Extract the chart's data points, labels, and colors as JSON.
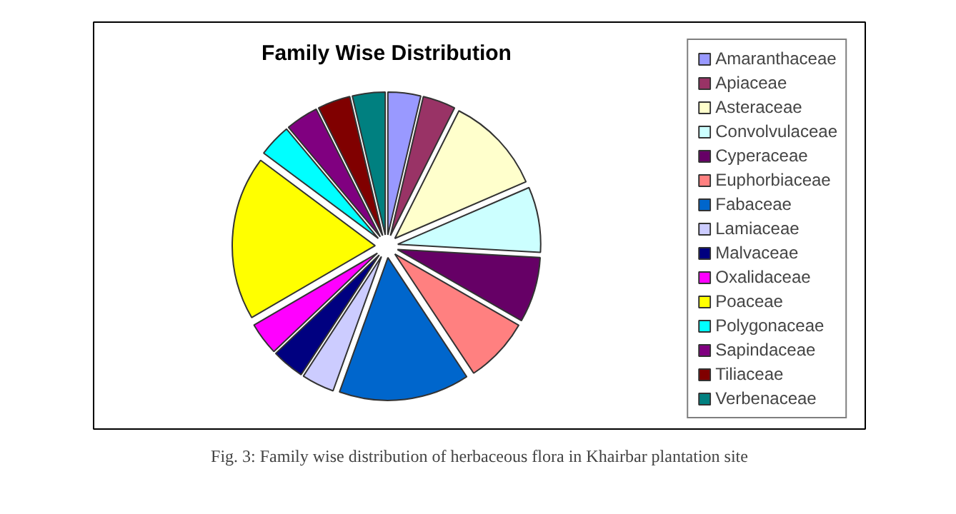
{
  "chart_data": {
    "type": "pie",
    "title": "Family Wise Distribution",
    "categories": [
      "Amaranthaceae",
      "Apiaceae",
      "Asteraceae",
      "Convolvulaceae",
      "Cyperaceae",
      "Euphorbiaceae",
      "Fabaceae",
      "Lamiaceae",
      "Malvaceae",
      "Oxalidaceae",
      "Poaceae",
      "Polygonaceae",
      "Sapindaceae",
      "Tiliaceae",
      "Verbenaceae"
    ],
    "values": [
      3.7,
      3.7,
      11.1,
      7.4,
      7.4,
      7.4,
      14.8,
      3.7,
      3.7,
      3.7,
      18.6,
      3.7,
      3.7,
      3.7,
      3.7
    ],
    "colors": [
      "#9999ff",
      "#993366",
      "#ffffcc",
      "#ccffff",
      "#660066",
      "#ff8080",
      "#0066cc",
      "#ccccff",
      "#000080",
      "#ff00ff",
      "#ffff00",
      "#00ffff",
      "#800080",
      "#800000",
      "#008080"
    ],
    "legend": "right",
    "annotations": [
      "Fig. 3: Family wise distribution of herbaceous flora in Khairbar plantation site"
    ]
  }
}
